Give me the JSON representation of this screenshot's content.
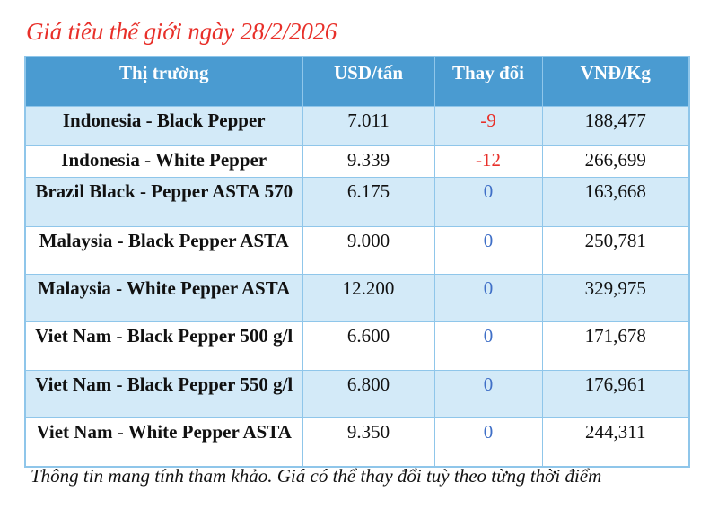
{
  "title": "Giá tiêu thế giới ngày 28/2/2026",
  "table": {
    "headers": [
      "Thị trường",
      "USD/tấn",
      "Thay đổi",
      "VNĐ/Kg"
    ],
    "rows": [
      {
        "market": "Indonesia - Black Pepper",
        "usd": "7.011",
        "change": "-9",
        "vnd": "188,477"
      },
      {
        "market": "Indonesia - White Pepper",
        "usd": "9.339",
        "change": "-12",
        "vnd": "266,699"
      },
      {
        "market": "Brazil Black - Pepper ASTA 570",
        "usd": "6.175",
        "change": "0",
        "vnd": "163,668"
      },
      {
        "market": "Malaysia - Black Pepper ASTA",
        "usd": "9.000",
        "change": "0",
        "vnd": "250,781"
      },
      {
        "market": "Malaysia - White Pepper ASTA",
        "usd": "12.200",
        "change": "0",
        "vnd": "329,975"
      },
      {
        "market": "Viet Nam - Black Pepper 500 g/l",
        "usd": "6.600",
        "change": "0",
        "vnd": "171,678"
      },
      {
        "market": "Viet Nam - Black Pepper 550 g/l",
        "usd": "6.800",
        "change": "0",
        "vnd": "176,961"
      },
      {
        "market": "Viet Nam - White Pepper ASTA",
        "usd": "9.350",
        "change": "0",
        "vnd": "244,311"
      }
    ]
  },
  "note": "Thông tin mang tính tham khảo. Giá có thể thay đổi tuỳ theo từng thời điểm",
  "colors": {
    "title": "#e8302a",
    "header_bg": "#4a9bd1",
    "alt_row_bg": "#d3eaf8",
    "negative": "#e8302a",
    "zero": "#3f6fc7"
  }
}
